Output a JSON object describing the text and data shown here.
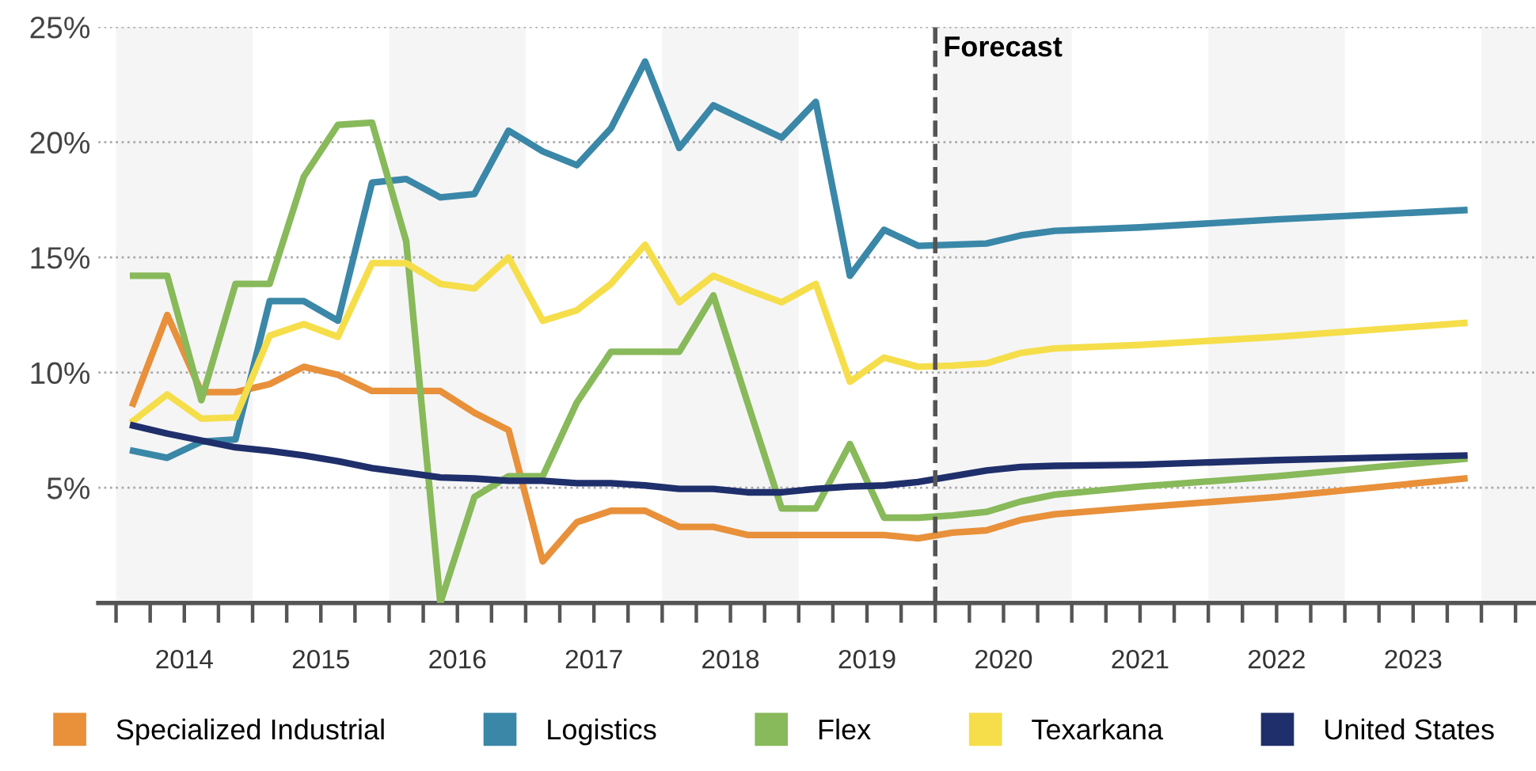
{
  "chart_data": {
    "type": "line",
    "series": [
      {
        "name": "Specialized Industrial",
        "color": "#e8903a",
        "x": [
          2014.125,
          2014.375,
          2014.625,
          2014.875,
          2015.125,
          2015.375,
          2015.625,
          2015.875,
          2016.125,
          2016.375,
          2016.625,
          2016.875,
          2017.125,
          2017.375,
          2017.625,
          2017.875,
          2018.125,
          2018.375,
          2018.625,
          2018.875,
          2019.125,
          2019.375,
          2019.625,
          2019.875,
          2020.125,
          2020.375,
          2020.625,
          2020.875,
          2021.5,
          2022.5,
          2023.875
        ],
        "values": [
          8.65,
          12.5,
          9.15,
          9.15,
          9.5,
          10.25,
          9.9,
          9.2,
          9.2,
          9.2,
          8.25,
          7.5,
          1.8,
          3.5,
          4.0,
          4.0,
          3.3,
          3.3,
          2.95,
          2.95,
          2.95,
          2.95,
          2.95,
          2.8,
          3.05,
          3.15,
          3.6,
          3.85,
          4.15,
          4.6,
          5.4
        ]
      },
      {
        "name": "Logistics",
        "color": "#3a87a8",
        "x": [
          2014.125,
          2014.375,
          2014.625,
          2014.875,
          2015.125,
          2015.375,
          2015.625,
          2015.875,
          2016.125,
          2016.375,
          2016.625,
          2016.875,
          2017.125,
          2017.375,
          2017.625,
          2017.875,
          2018.125,
          2018.375,
          2018.625,
          2018.875,
          2019.125,
          2019.375,
          2019.625,
          2019.875,
          2020.125,
          2020.375,
          2020.625,
          2020.875,
          2021.5,
          2022.5,
          2023.875
        ],
        "values": [
          6.6,
          6.3,
          7.0,
          7.1,
          13.1,
          13.1,
          12.25,
          18.25,
          18.4,
          17.6,
          17.75,
          20.5,
          19.6,
          19.0,
          20.6,
          23.5,
          19.75,
          21.6,
          20.9,
          20.2,
          21.75,
          14.2,
          16.2,
          15.5,
          15.55,
          15.6,
          15.95,
          16.15,
          16.3,
          16.65,
          17.05
        ]
      },
      {
        "name": "Flex",
        "color": "#88b95a",
        "x": [
          2014.125,
          2014.375,
          2014.625,
          2014.875,
          2015.125,
          2015.375,
          2015.625,
          2015.875,
          2016.125,
          2016.375,
          2016.625,
          2016.875,
          2017.125,
          2017.375,
          2017.625,
          2017.875,
          2018.125,
          2018.375,
          2018.625,
          2018.875,
          2019.125,
          2019.375,
          2019.625,
          2019.875,
          2020.125,
          2020.375,
          2020.625,
          2020.875,
          2021.5,
          2022.5,
          2023.875
        ],
        "values": [
          14.2,
          14.2,
          8.8,
          13.85,
          13.85,
          18.5,
          20.75,
          20.85,
          15.7,
          0,
          4.6,
          5.5,
          5.5,
          8.7,
          10.9,
          10.9,
          10.9,
          13.35,
          8.7,
          4.1,
          4.1,
          6.9,
          3.7,
          3.7,
          3.8,
          3.95,
          4.4,
          4.7,
          5.05,
          5.5,
          6.25
        ]
      },
      {
        "name": "Texarkana",
        "color": "#f5de4a",
        "x": [
          2014.125,
          2014.375,
          2014.625,
          2014.875,
          2015.125,
          2015.375,
          2015.625,
          2015.875,
          2016.125,
          2016.375,
          2016.625,
          2016.875,
          2017.125,
          2017.375,
          2017.625,
          2017.875,
          2018.125,
          2018.375,
          2018.625,
          2018.875,
          2019.125,
          2019.375,
          2019.625,
          2019.875,
          2020.125,
          2020.375,
          2020.625,
          2020.875,
          2021.5,
          2022.5,
          2023.875
        ],
        "values": [
          7.9,
          9.05,
          8.0,
          8.05,
          11.6,
          12.1,
          11.55,
          14.75,
          14.75,
          13.85,
          13.65,
          15.0,
          12.25,
          12.7,
          13.85,
          15.55,
          13.05,
          14.2,
          13.6,
          13.05,
          13.85,
          9.6,
          10.65,
          10.25,
          10.3,
          10.4,
          10.85,
          11.05,
          11.2,
          11.55,
          12.15
        ]
      },
      {
        "name": "United States",
        "color": "#1f2f6b",
        "x": [
          2014.125,
          2014.375,
          2014.625,
          2014.875,
          2015.125,
          2015.375,
          2015.625,
          2015.875,
          2016.125,
          2016.375,
          2016.625,
          2016.875,
          2017.125,
          2017.375,
          2017.625,
          2017.875,
          2018.125,
          2018.375,
          2018.625,
          2018.875,
          2019.125,
          2019.375,
          2019.625,
          2019.875,
          2020.125,
          2020.375,
          2020.625,
          2020.875,
          2021.5,
          2022.5,
          2023.875
        ],
        "values": [
          7.7,
          7.35,
          7.05,
          6.75,
          6.6,
          6.4,
          6.15,
          5.85,
          5.65,
          5.45,
          5.4,
          5.3,
          5.3,
          5.2,
          5.2,
          5.1,
          4.95,
          4.95,
          4.8,
          4.8,
          4.95,
          5.05,
          5.1,
          5.25,
          5.5,
          5.75,
          5.9,
          5.95,
          6.0,
          6.2,
          6.4
        ]
      }
    ],
    "xlim": [
      2013.87,
      2024.4
    ],
    "xticks": [
      {
        "value": 2014,
        "label": null
      },
      {
        "value": 2014.25,
        "label": null
      },
      {
        "value": 2014.5,
        "label": "2014"
      },
      {
        "value": 2014.75,
        "label": null
      },
      {
        "value": 2015,
        "label": null
      },
      {
        "value": 2015.25,
        "label": null
      },
      {
        "value": 2015.5,
        "label": "2015"
      },
      {
        "value": 2015.75,
        "label": null
      },
      {
        "value": 2016,
        "label": null
      },
      {
        "value": 2016.25,
        "label": null
      },
      {
        "value": 2016.5,
        "label": "2016"
      },
      {
        "value": 2016.75,
        "label": null
      },
      {
        "value": 2017,
        "label": null
      },
      {
        "value": 2017.25,
        "label": null
      },
      {
        "value": 2017.5,
        "label": "2017"
      },
      {
        "value": 2017.75,
        "label": null
      },
      {
        "value": 2018,
        "label": null
      },
      {
        "value": 2018.25,
        "label": null
      },
      {
        "value": 2018.5,
        "label": "2018"
      },
      {
        "value": 2018.75,
        "label": null
      },
      {
        "value": 2019,
        "label": null
      },
      {
        "value": 2019.25,
        "label": null
      },
      {
        "value": 2019.5,
        "label": "2019"
      },
      {
        "value": 2019.75,
        "label": null
      },
      {
        "value": 2020,
        "label": null
      },
      {
        "value": 2020.25,
        "label": null
      },
      {
        "value": 2020.5,
        "label": "2020"
      },
      {
        "value": 2020.75,
        "label": null
      },
      {
        "value": 2021,
        "label": null
      },
      {
        "value": 2021.25,
        "label": null
      },
      {
        "value": 2021.5,
        "label": "2021"
      },
      {
        "value": 2021.75,
        "label": null
      },
      {
        "value": 2022,
        "label": null
      },
      {
        "value": 2022.25,
        "label": null
      },
      {
        "value": 2022.5,
        "label": "2022"
      },
      {
        "value": 2022.75,
        "label": null
      },
      {
        "value": 2023,
        "label": null
      },
      {
        "value": 2023.25,
        "label": null
      },
      {
        "value": 2023.5,
        "label": "2023"
      },
      {
        "value": 2023.75,
        "label": null
      },
      {
        "value": 2024,
        "label": null
      },
      {
        "value": 2024.25,
        "label": null
      }
    ],
    "ylim": [
      0,
      25
    ],
    "yticks": [
      {
        "value": 5,
        "label": "5%"
      },
      {
        "value": 10,
        "label": "10%"
      },
      {
        "value": 15,
        "label": "15%"
      },
      {
        "value": 20,
        "label": "20%"
      },
      {
        "value": 25,
        "label": "25%"
      }
    ],
    "bands": [
      {
        "axis": "x",
        "from": 2014,
        "to": 2015,
        "color": "#f5f5f5"
      },
      {
        "axis": "x",
        "from": 2016,
        "to": 2017,
        "color": "#f5f5f5"
      },
      {
        "axis": "x",
        "from": 2018,
        "to": 2019,
        "color": "#f5f5f5"
      },
      {
        "axis": "x",
        "from": 2020,
        "to": 2021,
        "color": "#f5f5f5"
      },
      {
        "axis": "x",
        "from": 2022,
        "to": 2023,
        "color": "#f5f5f5"
      },
      {
        "axis": "x",
        "from": 2024,
        "to": 2024.4,
        "color": "#f5f5f5"
      }
    ],
    "ref_lines": [
      {
        "axis": "x",
        "value": 2020,
        "label": "Forecast",
        "color": "#555555",
        "line_style": "dashed"
      }
    ],
    "grid": "y",
    "legend": "bottom",
    "marker": "none",
    "line_style": "solid"
  }
}
